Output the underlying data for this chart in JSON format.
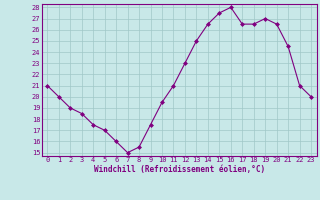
{
  "x": [
    0,
    1,
    2,
    3,
    4,
    5,
    6,
    7,
    8,
    9,
    10,
    11,
    12,
    13,
    14,
    15,
    16,
    17,
    18,
    19,
    20,
    21,
    22,
    23
  ],
  "y": [
    21,
    20,
    19,
    18.5,
    17.5,
    17,
    16,
    15,
    15.5,
    17.5,
    19.5,
    21,
    23,
    25,
    26.5,
    27.5,
    28,
    26.5,
    26.5,
    27,
    26.5,
    24.5,
    21,
    20
  ],
  "line_color": "#800080",
  "marker": "D",
  "marker_size": 2,
  "bg_color": "#c8e8e8",
  "grid_color": "#a0c8c8",
  "xlabel": "Windchill (Refroidissement éolien,°C)",
  "xlabel_color": "#800080",
  "tick_color": "#800080",
  "ylim": [
    15,
    28
  ],
  "yticks": [
    15,
    16,
    17,
    18,
    19,
    20,
    21,
    22,
    23,
    24,
    25,
    26,
    27,
    28
  ],
  "xticks": [
    0,
    1,
    2,
    3,
    4,
    5,
    6,
    7,
    8,
    9,
    10,
    11,
    12,
    13,
    14,
    15,
    16,
    17,
    18,
    19,
    20,
    21,
    22,
    23
  ],
  "spine_color": "#800080",
  "linewidth": 0.8,
  "xlabel_fontsize": 5.5,
  "tick_fontsize": 5.0
}
